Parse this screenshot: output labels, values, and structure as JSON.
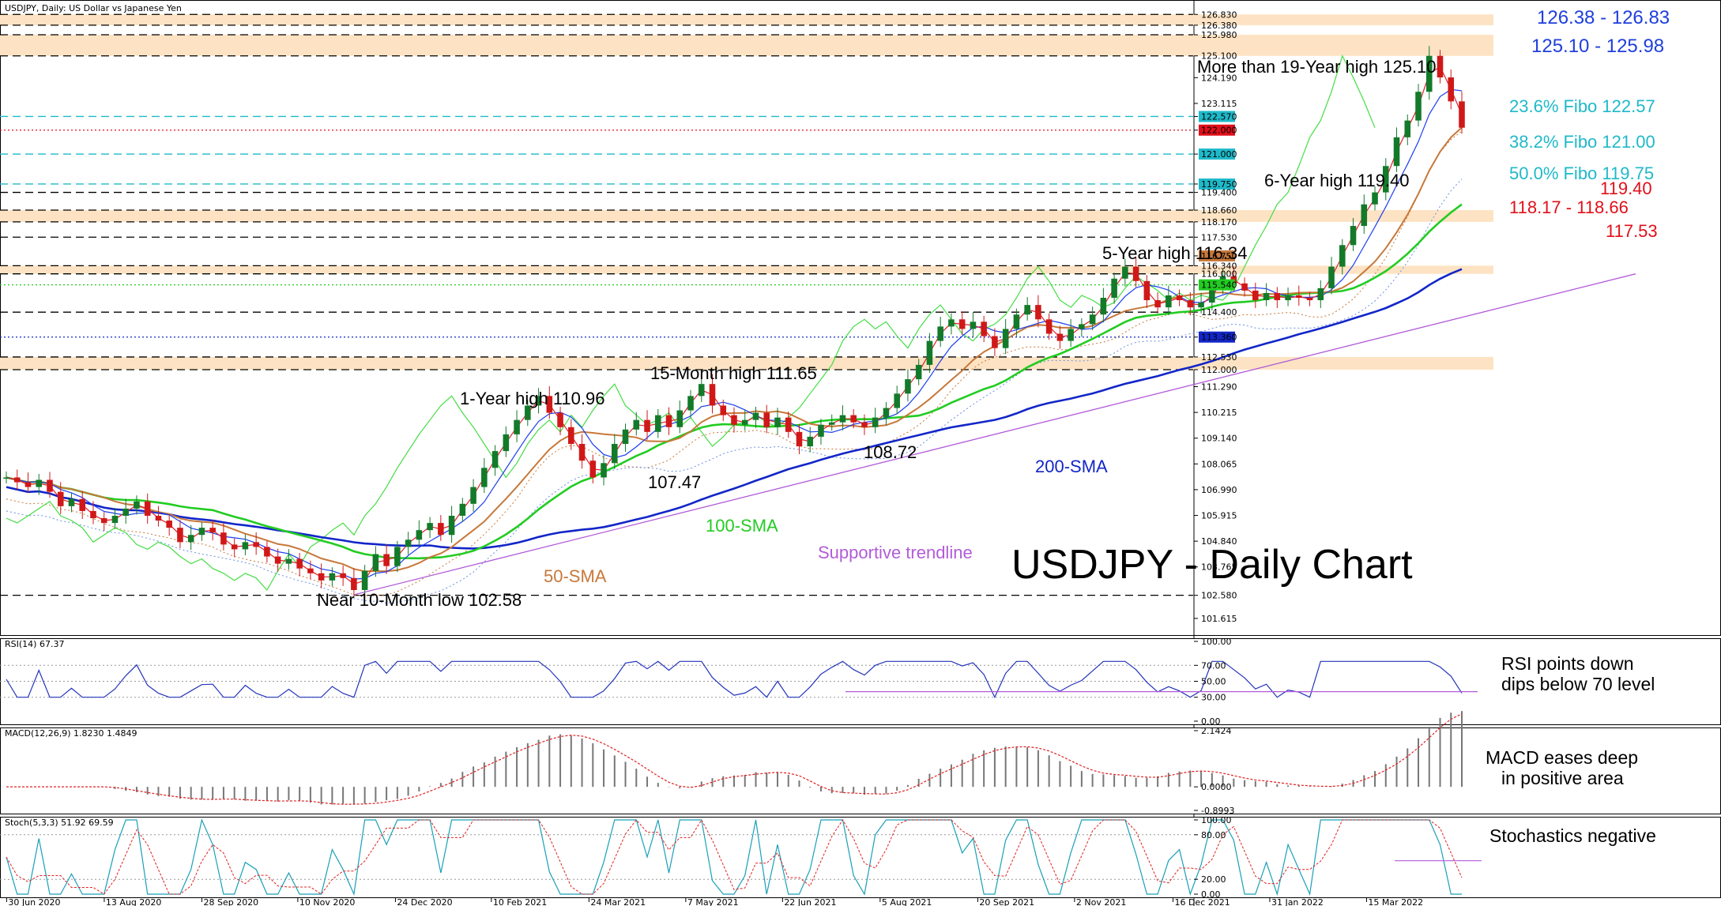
{
  "header": {
    "symbol_label": "USDJPY, Daily:  US Dollar vs Japanese Yen"
  },
  "colors": {
    "accent_blue": "#1f3fdc",
    "fibo_cyan": "#1fb9c9",
    "resistance_red": "#e0101a",
    "sma50": "#c7783a",
    "sma100": "#22cc22",
    "sma200": "#1226c8",
    "trendline": "#b25cd8",
    "zone": "#fde3c3",
    "chikou": "#44dd44"
  },
  "chart_data": [
    {
      "type": "line",
      "panel": "price",
      "ylim": [
        100.92,
        127.3
      ],
      "y_ticks": [
        126.83,
        126.38,
        125.98,
        125.1,
        124.19,
        123.115,
        122.57,
        122.0,
        121.0,
        119.75,
        119.4,
        118.66,
        118.17,
        117.53,
        116.75,
        116.34,
        116.0,
        115.54,
        114.4,
        113.36,
        112.53,
        112.0,
        111.29,
        110.215,
        109.14,
        108.065,
        106.99,
        105.915,
        104.84,
        103.765,
        102.58,
        101.615
      ],
      "x_ticks": [
        "30 Jun 2020",
        "13 Aug 2020",
        "28 Sep 2020",
        "10 Nov 2020",
        "24 Dec 2020",
        "10 Feb 2021",
        "24 Mar 2021",
        "7 May 2021",
        "22 Jun 2021",
        "5 Aug 2021",
        "20 Sep 2021",
        "2 Nov 2021",
        "16 Dec 2021",
        "31 Jan 2022",
        "15 Mar 2022"
      ],
      "price_series": [
        107.5,
        107.3,
        107.1,
        107.4,
        106.9,
        106.3,
        106.6,
        106.1,
        105.8,
        105.6,
        105.9,
        106.2,
        106.5,
        105.9,
        105.7,
        105.4,
        104.8,
        105.1,
        105.4,
        105.2,
        104.7,
        104.5,
        104.8,
        104.6,
        104.2,
        103.9,
        104.1,
        103.7,
        103.5,
        103.2,
        103.5,
        103.3,
        102.8,
        103.6,
        104.3,
        103.8,
        104.6,
        104.9,
        105.3,
        105.6,
        105.1,
        105.9,
        106.4,
        107.1,
        107.9,
        108.6,
        109.3,
        109.9,
        110.5,
        110.9,
        110.2,
        109.6,
        108.9,
        108.2,
        107.5,
        108.1,
        108.9,
        109.5,
        109.9,
        109.4,
        110.1,
        109.6,
        110.3,
        110.9,
        111.4,
        110.5,
        110.1,
        109.7,
        109.9,
        110.2,
        109.6,
        110.0,
        109.4,
        108.8,
        109.2,
        109.7,
        109.8,
        110.1,
        109.8,
        109.6,
        110.0,
        110.4,
        111.0,
        111.6,
        112.2,
        113.2,
        113.8,
        114.1,
        113.7,
        114.0,
        113.4,
        112.9,
        113.7,
        114.3,
        114.7,
        114.1,
        113.5,
        113.2,
        113.7,
        113.9,
        114.3,
        115.0,
        115.8,
        116.3,
        115.7,
        114.9,
        114.6,
        115.1,
        114.9,
        114.6,
        114.8,
        115.4,
        115.9,
        115.6,
        115.3,
        114.9,
        115.2,
        114.9,
        115.1,
        115.0,
        114.9,
        115.4,
        116.3,
        117.2,
        118.0,
        118.9,
        119.4,
        120.5,
        121.7,
        122.4,
        123.6,
        125.1,
        124.2,
        123.2,
        122.1
      ],
      "annotations": [
        {
          "text": "More than 19-Year high 125.10",
          "color": "#000"
        },
        {
          "text": "6-Year high 119.40",
          "color": "#000"
        },
        {
          "text": "5-Year high 116.34",
          "color": "#000"
        },
        {
          "text": "15-Month high 111.65",
          "color": "#000"
        },
        {
          "text": "1-Year high 110.96",
          "color": "#000"
        },
        {
          "text": "107.47",
          "color": "#000"
        },
        {
          "text": "108.72",
          "color": "#000"
        },
        {
          "text": "Near 10-Month low 102.58",
          "color": "#000"
        },
        {
          "text": "200-SMA",
          "color": "#1226c8"
        },
        {
          "text": "100-SMA",
          "color": "#22cc22"
        },
        {
          "text": "50-SMA",
          "color": "#c7783a"
        },
        {
          "text": "Supportive trendline",
          "color": "#b25cd8"
        },
        {
          "text": "126.38 - 126.83",
          "color": "#1f3fdc"
        },
        {
          "text": "125.10 - 125.98",
          "color": "#1f3fdc"
        },
        {
          "text": "23.6% Fibo 122.57",
          "color": "#1fb9c9"
        },
        {
          "text": "38.2% Fibo 121.00",
          "color": "#1fb9c9"
        },
        {
          "text": "50.0% Fibo 119.75",
          "color": "#1fb9c9"
        },
        {
          "text": "119.40",
          "color": "#e0101a"
        },
        {
          "text": "118.17 - 118.66",
          "color": "#e0101a"
        },
        {
          "text": "117.53",
          "color": "#e0101a"
        }
      ],
      "title": "USDJPY - Daily Chart"
    },
    {
      "type": "line",
      "panel": "rsi",
      "legend": "RSI(14) 67.37",
      "ylim": [
        0,
        100
      ],
      "y_ticks": [
        "100.00",
        "70.00",
        "50.00",
        "30.00",
        "0.00"
      ],
      "note": "RSI points down dips below 70 level"
    },
    {
      "type": "bar",
      "panel": "macd",
      "legend": "MACD(12,26,9) 1.8230 1.4849",
      "y_ticks": [
        "2.1424",
        "0.0000",
        "-0.8993"
      ],
      "note": "MACD eases deep in positive area"
    },
    {
      "type": "line",
      "panel": "stoch",
      "legend": "Stoch(5,3,3) 51.92 69.59",
      "ylim": [
        0,
        100
      ],
      "y_ticks": [
        "100.00",
        "80.00",
        "20.00",
        "0.00"
      ],
      "note": "Stochastics negative"
    }
  ],
  "texts": {
    "title": "USDJPY - Daily Chart",
    "rsi_note_1": "RSI points down",
    "rsi_note_2": "dips below 70 level",
    "macd_note_1": "MACD eases deep",
    "macd_note_2": "in positive area",
    "stoch_note": "Stochastics negative",
    "price_label_last": "122.000"
  }
}
